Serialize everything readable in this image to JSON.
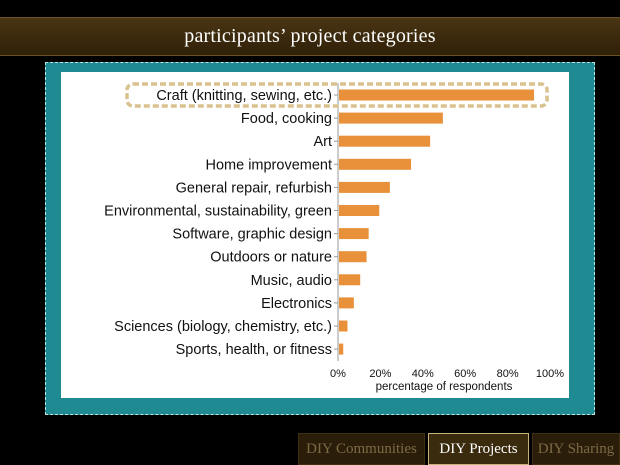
{
  "slide": {
    "title": "participants’ project categories"
  },
  "nav": {
    "items": [
      {
        "label": "DIY Communities",
        "active": false
      },
      {
        "label": "DIY Projects",
        "active": true
      },
      {
        "label": "DIY Sharing",
        "active": false
      }
    ]
  },
  "colors": {
    "bar": "#e8913a",
    "highlight_border": "#d8c28e",
    "frame": "#1f8a92",
    "title_bar": "#3b2a0e"
  },
  "chart_data": {
    "type": "bar",
    "orientation": "horizontal",
    "categories": [
      "Craft (knitting, sewing, etc.)",
      "Food, cooking",
      "Art",
      "Home improvement",
      "General repair, refurbish",
      "Environmental, sustainability, green",
      "Software, graphic design",
      "Outdoors or nature",
      "Music, audio",
      "Electronics",
      "Sciences (biology, chemistry, etc.)",
      "Sports, health, or fitness"
    ],
    "values": [
      92,
      49,
      43,
      34,
      24,
      19,
      14,
      13,
      10,
      7,
      4,
      2
    ],
    "highlighted_category": "Craft (knitting, sewing, etc.)",
    "xlabel": "percentage of respondents",
    "xticks": [
      "0%",
      "20%",
      "40%",
      "60%",
      "80%",
      "100%"
    ],
    "xlim": [
      0,
      100
    ],
    "grid": false
  }
}
